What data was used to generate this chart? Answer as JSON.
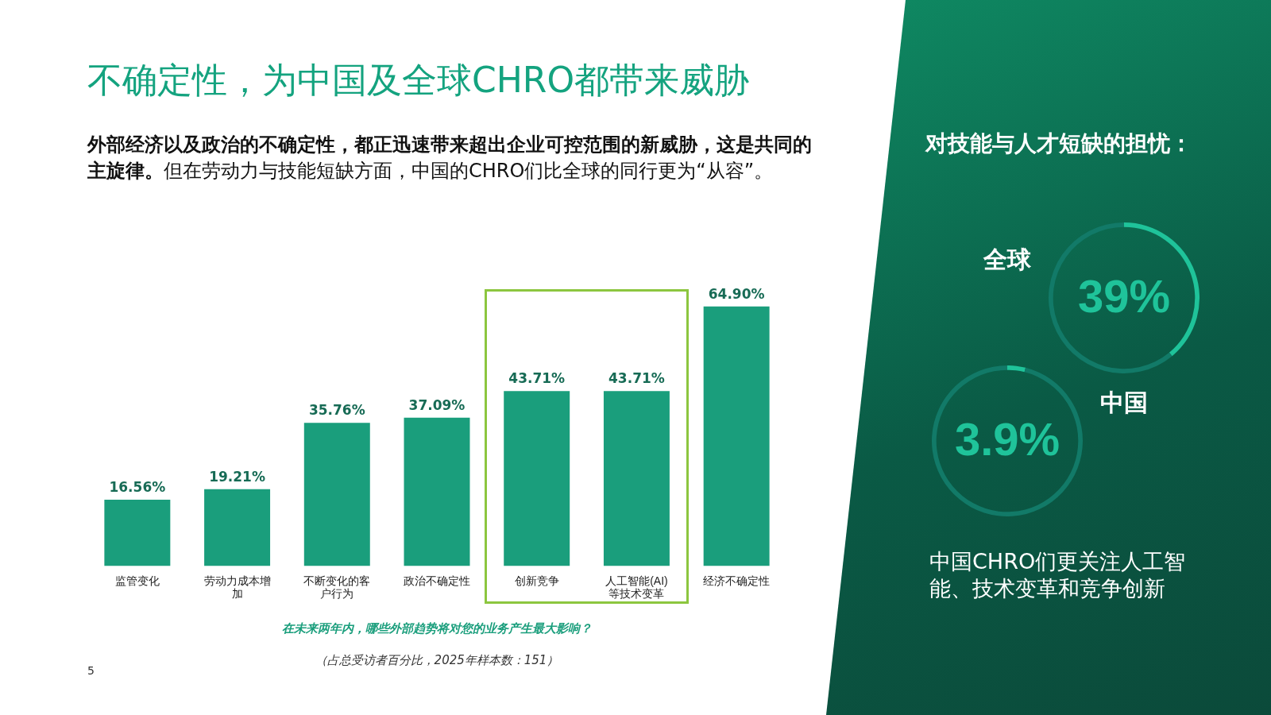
{
  "chart_data": [
    {
      "type": "bar",
      "title": "不确定性，为中国及全球CHRO都带来威胁",
      "subtitle": "外部经济以及政治的不确定性，都正迅速带来超出企业可控范围的新威胁，这是共同的主旋律。但在劳动力与技能短缺方面，中国的CHRO们比全球的同行更为“从容”。",
      "categories": [
        "监管变化",
        "劳动力成本增加",
        "不断变化的客户行为",
        "政治不确定性",
        "创新竞争",
        "人工智能(AI)等技术变革",
        "经济不确定性"
      ],
      "values": [
        16.56,
        19.21,
        35.76,
        37.09,
        43.71,
        43.71,
        64.9
      ],
      "color": "#1a9e7c",
      "value_labels": [
        "16.56%",
        "19.21%",
        "35.76%",
        "37.09%",
        "43.71%",
        "43.71%",
        "64.90%"
      ],
      "annotations": [
        "在未来两年内，哪些外部趋势将对您的业务产生最大影响？",
        "（占总受访者百分比，2025年样本数：151）",
        "5"
      ]
    },
    {
      "type": "donut",
      "title": "全球",
      "categories": [
        null,
        null
      ],
      "values": [
        39,
        61
      ],
      "colors": [
        "#1fc39a",
        "#127a68"
      ],
      "value_labels": [
        "39%",
        null
      ]
    },
    {
      "type": "donut",
      "title": "中国",
      "categories": [
        null,
        null
      ],
      "values": [
        3.9,
        96.1
      ],
      "colors": [
        "#1fc39a",
        "#127a68"
      ],
      "value_labels": [
        "3.9%",
        null
      ]
    },
    {
      "type": "other",
      "title": "对技能与人才短缺的担忧：",
      "annotations": [
        "中国CHRO们更关注人工智能、技术变革和竞争创新"
      ]
    }
  ]
}
